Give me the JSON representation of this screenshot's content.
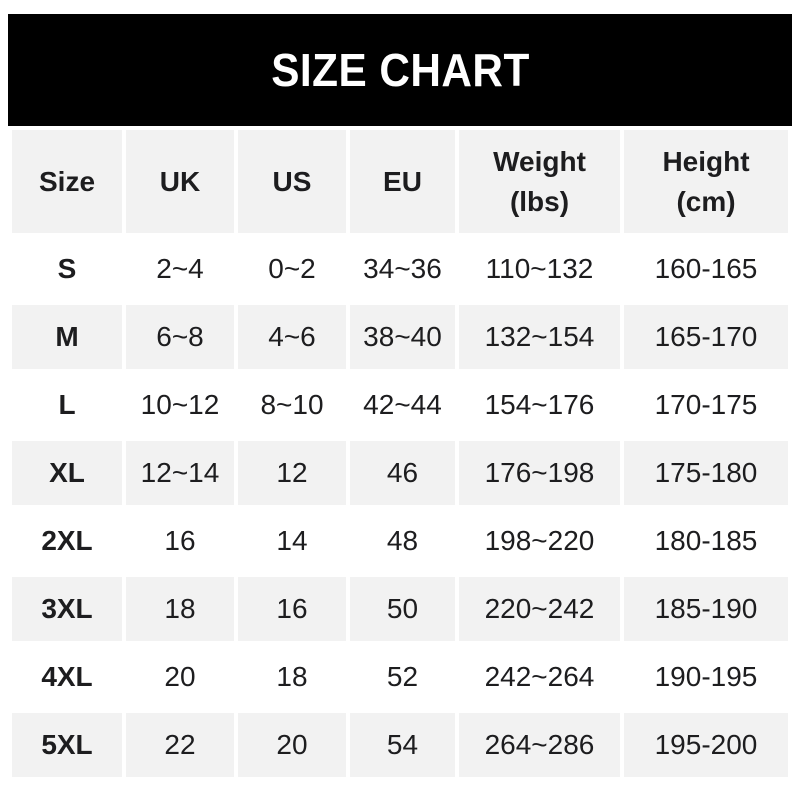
{
  "banner": {
    "title": "SIZE CHART"
  },
  "chart_data": {
    "type": "table",
    "title": "SIZE CHART",
    "columns": [
      {
        "key": "size",
        "lines": [
          "Size"
        ]
      },
      {
        "key": "uk",
        "lines": [
          "UK"
        ]
      },
      {
        "key": "us",
        "lines": [
          "US"
        ]
      },
      {
        "key": "eu",
        "lines": [
          "EU"
        ]
      },
      {
        "key": "weight",
        "lines": [
          "Weight",
          "(lbs)"
        ]
      },
      {
        "key": "height",
        "lines": [
          "Height",
          "(cm)"
        ]
      }
    ],
    "rows": [
      [
        "S",
        "2~4",
        "0~2",
        "34~36",
        "110~132",
        "160-165"
      ],
      [
        "M",
        "6~8",
        "4~6",
        "38~40",
        "132~154",
        "165-170"
      ],
      [
        "L",
        "10~12",
        "8~10",
        "42~44",
        "154~176",
        "170-175"
      ],
      [
        "XL",
        "12~14",
        "12",
        "46",
        "176~198",
        "175-180"
      ],
      [
        "2XL",
        "16",
        "14",
        "48",
        "198~220",
        "180-185"
      ],
      [
        "3XL",
        "18",
        "16",
        "50",
        "220~242",
        "185-190"
      ],
      [
        "4XL",
        "20",
        "18",
        "52",
        "242~264",
        "190-195"
      ],
      [
        "5XL",
        "22",
        "20",
        "54",
        "264~286",
        "195-200"
      ]
    ]
  },
  "colors": {
    "banner_bg": "#000000",
    "banner_text": "#ffffff",
    "stripe_bg": "#f2f2f2",
    "text_color": "#1d1d1f",
    "page_bg": "#ffffff"
  }
}
